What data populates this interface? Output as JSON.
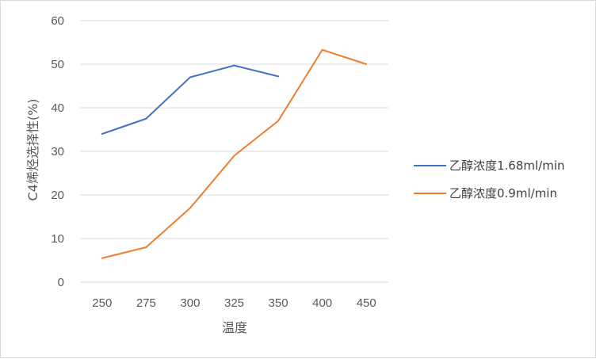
{
  "chart_data": {
    "type": "line",
    "x": [
      250,
      275,
      300,
      325,
      350,
      400,
      450
    ],
    "categories": [
      "250",
      "275",
      "300",
      "325",
      "350",
      "400",
      "450"
    ],
    "xlabel": "温度",
    "ylabel": "C4烯烃选择性(%)",
    "ylim": [
      0,
      60
    ],
    "yticks": [
      "0",
      "10",
      "20",
      "30",
      "40",
      "50",
      "60"
    ],
    "grid": true,
    "legend_position": "right",
    "series": [
      {
        "name": "乙醇浓度1.68ml/min",
        "color": "#4472C4",
        "values": [
          34.0,
          37.5,
          47.0,
          49.7,
          47.2,
          null,
          null
        ]
      },
      {
        "name": "乙醇浓度0.9ml/min",
        "color": "#ED7D31",
        "values": [
          5.5,
          8.0,
          17.0,
          29.0,
          37.0,
          53.3,
          50.0
        ]
      }
    ]
  }
}
